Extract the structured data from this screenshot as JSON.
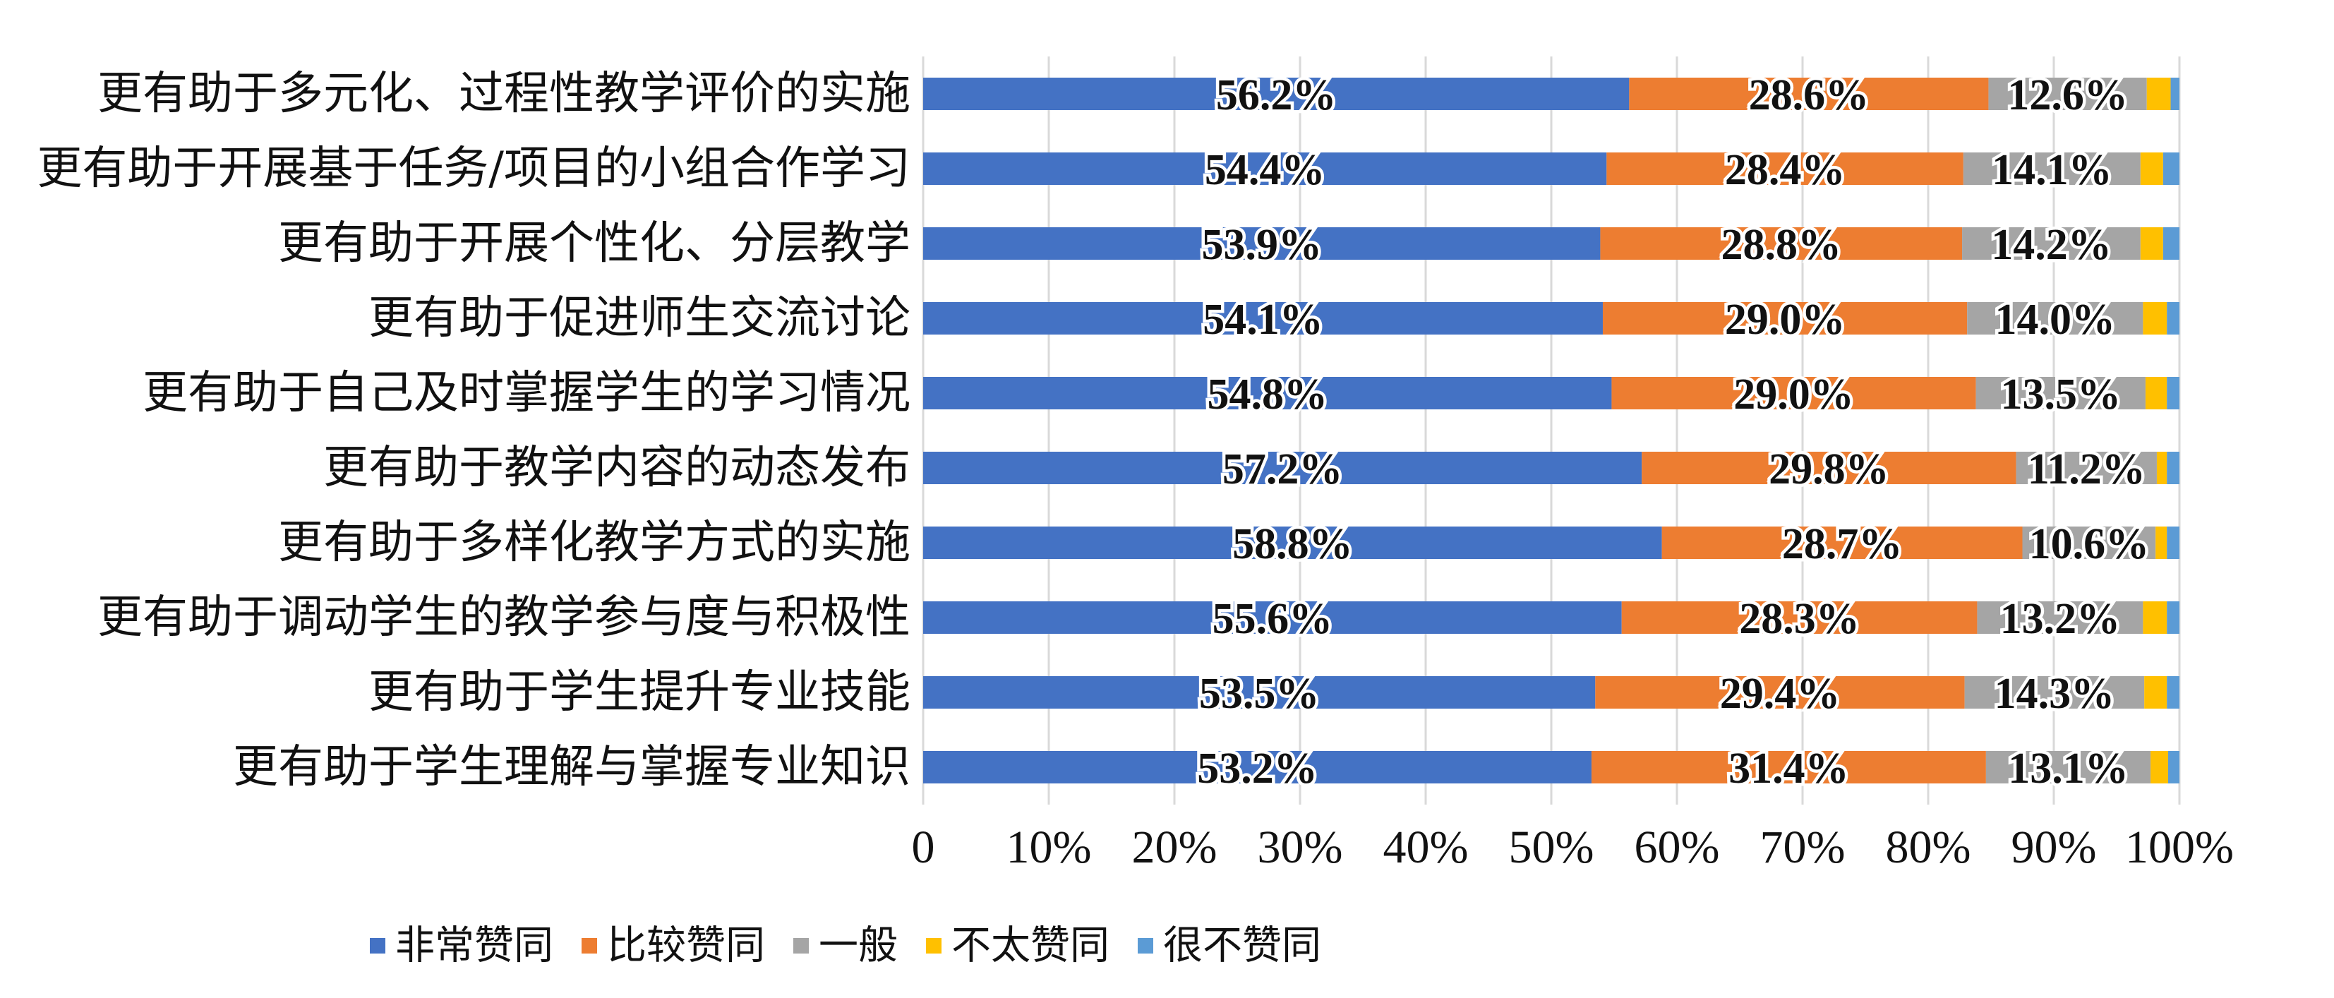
{
  "chart_data": {
    "type": "bar",
    "orientation": "horizontal",
    "stacked": "percent",
    "categories": [
      "更有助于多元化、过程性教学评价的实施",
      "更有助于开展基于任务/项目的小组合作学习",
      "更有助于开展个性化、分层教学",
      "更有助于促进师生交流讨论",
      "更有助于自己及时掌握学生的学习情况",
      "更有助于教学内容的动态发布",
      "更有助于多样化教学方式的实施",
      "更有助于调动学生的教学参与度与积极性",
      "更有助于学生提升专业技能",
      "更有助于学生理解与掌握专业知识"
    ],
    "series": [
      {
        "name": "非常赞同",
        "color": "#4472C4",
        "values": [
          56.2,
          54.4,
          53.9,
          54.1,
          54.8,
          57.2,
          58.8,
          55.6,
          53.5,
          53.2
        ],
        "labels": [
          "56.2%",
          "54.4%",
          "53.9%",
          "54.1%",
          "54.8%",
          "57.2%",
          "58.8%",
          "55.6%",
          "53.5%",
          "53.2%"
        ]
      },
      {
        "name": "比较赞同",
        "color": "#ED7D31",
        "values": [
          28.6,
          28.4,
          28.8,
          29.0,
          29.0,
          29.8,
          28.7,
          28.3,
          29.4,
          31.4
        ],
        "labels": [
          "28.6%",
          "28.4%",
          "28.8%",
          "29.0%",
          "29.0%",
          "29.8%",
          "28.7%",
          "28.3%",
          "29.4%",
          "31.4%"
        ]
      },
      {
        "name": "一般",
        "color": "#A5A5A5",
        "values": [
          12.6,
          14.1,
          14.2,
          14.0,
          13.5,
          11.2,
          10.6,
          13.2,
          14.3,
          13.1
        ],
        "labels": [
          "12.6%",
          "14.1%",
          "14.2%",
          "14.0%",
          "13.5%",
          "11.2%",
          "10.6%",
          "13.2%",
          "14.3%",
          "13.1%"
        ]
      },
      {
        "name": "不太赞同",
        "color": "#FFC000",
        "values": [
          1.9,
          1.8,
          1.8,
          1.9,
          1.7,
          0.8,
          0.9,
          1.9,
          1.8,
          1.4
        ]
      },
      {
        "name": "很不赞同",
        "color": "#5B9BD5",
        "values": [
          0.7,
          1.3,
          1.3,
          1.0,
          1.0,
          1.0,
          1.0,
          1.0,
          1.0,
          0.9
        ]
      }
    ],
    "xlim": [
      0,
      100
    ],
    "xticks": [
      "0",
      "10%",
      "20%",
      "30%",
      "40%",
      "50%",
      "60%",
      "70%",
      "80%",
      "90%",
      "100%"
    ],
    "grid": true,
    "legend_position": "bottom"
  }
}
